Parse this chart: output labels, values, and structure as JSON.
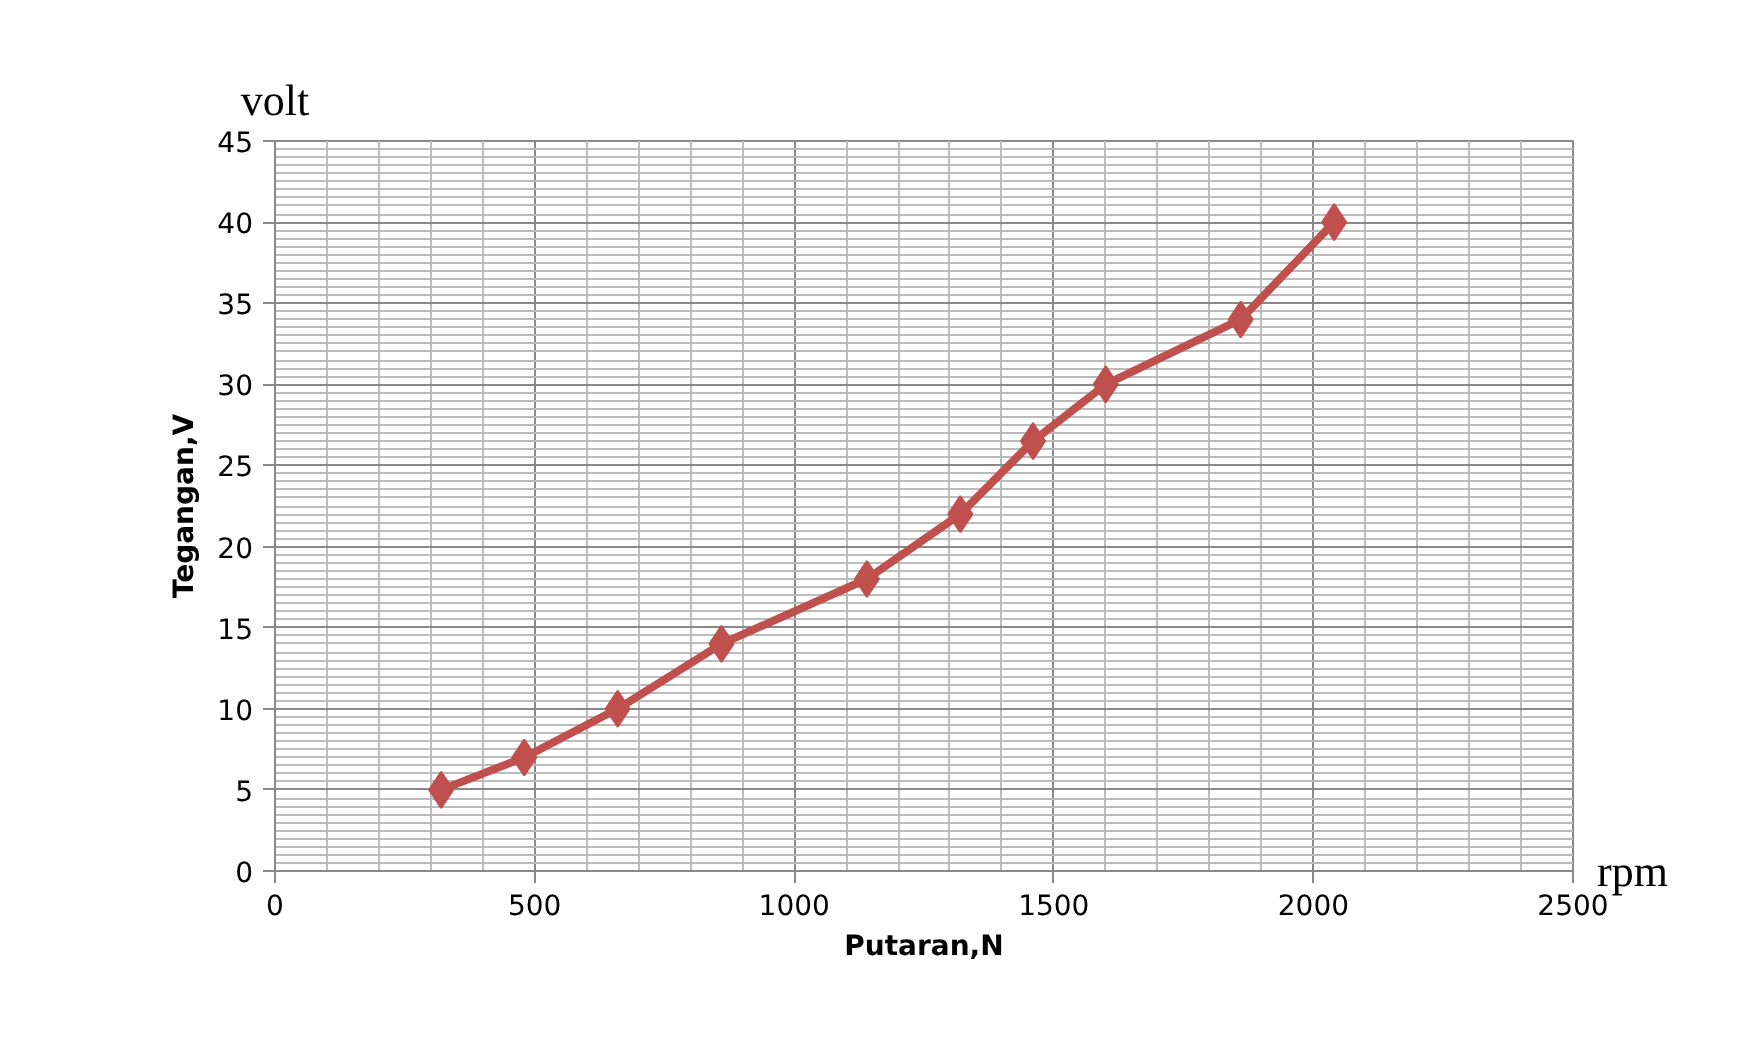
{
  "chart_data": {
    "type": "line",
    "xlabel": "Putaran,N",
    "ylabel": "Tegangan,V",
    "annotations": [
      "volt",
      "rpm"
    ],
    "x": [
      320,
      480,
      660,
      860,
      1140,
      1320,
      1460,
      1600,
      1860,
      2040
    ],
    "series": [
      {
        "color": "#c0504d",
        "values": [
          5,
          7,
          10,
          14,
          18,
          22,
          26.5,
          30,
          34,
          40
        ]
      }
    ],
    "xlim": [
      0,
      2500
    ],
    "ylim": [
      0,
      45
    ],
    "xticks": [
      0,
      500,
      1000,
      1500,
      2000,
      2500
    ],
    "yticks": [
      0,
      5,
      10,
      15,
      20,
      25,
      30,
      35,
      40,
      45
    ],
    "grid": true,
    "marker": "diamond",
    "line_style": "solid"
  }
}
